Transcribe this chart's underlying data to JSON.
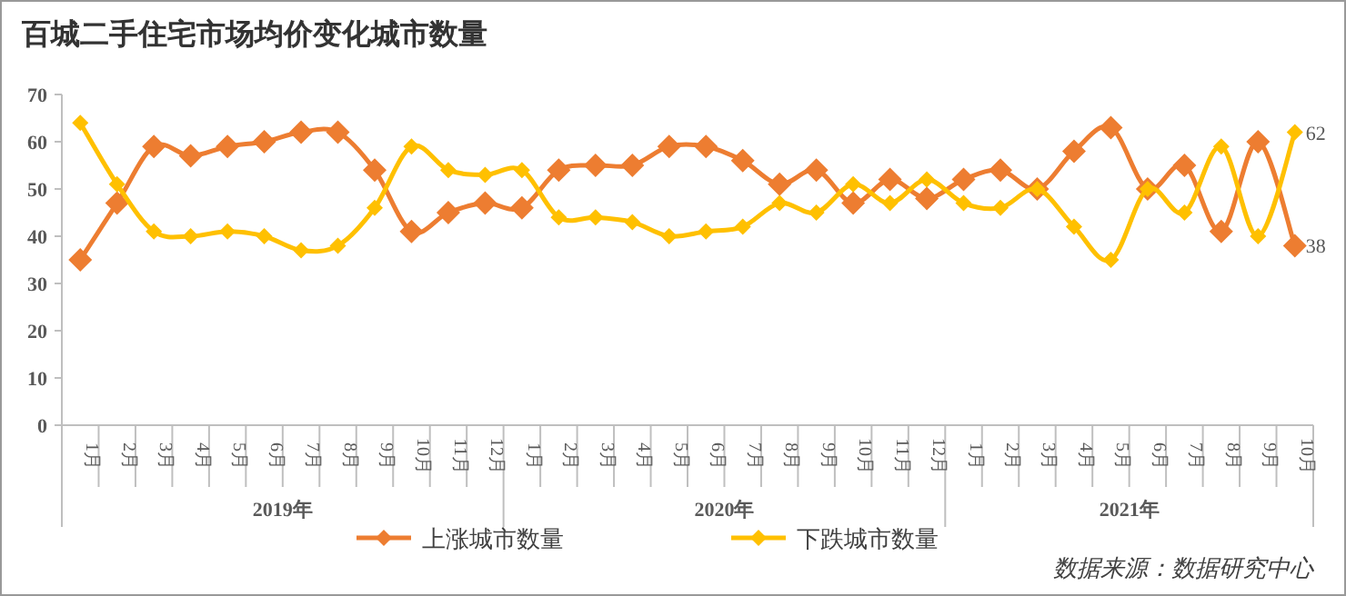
{
  "chart_data": {
    "type": "line",
    "title": "百城二手住宅市场均价变化城市数量",
    "categories": [
      "1月",
      "2月",
      "3月",
      "4月",
      "5月",
      "6月",
      "7月",
      "8月",
      "9月",
      "10月",
      "11月",
      "12月",
      "1月",
      "2月",
      "3月",
      "4月",
      "5月",
      "6月",
      "7月",
      "8月",
      "9月",
      "10月",
      "11月",
      "12月",
      "1月",
      "2月",
      "3月",
      "4月",
      "5月",
      "6月",
      "7月",
      "8月",
      "9月",
      "10月"
    ],
    "series": [
      {
        "name": "上涨城市数量",
        "color": "#ed7d31",
        "values": [
          35,
          47,
          59,
          57,
          59,
          60,
          62,
          62,
          54,
          41,
          45,
          47,
          46,
          54,
          55,
          55,
          59,
          59,
          56,
          51,
          54,
          47,
          52,
          48,
          52,
          54,
          50,
          58,
          63,
          50,
          55,
          41,
          60,
          38
        ],
        "value_labels": [
          null,
          null,
          null,
          null,
          null,
          null,
          null,
          null,
          null,
          null,
          null,
          null,
          null,
          null,
          null,
          null,
          null,
          null,
          null,
          null,
          null,
          null,
          null,
          null,
          null,
          null,
          null,
          null,
          null,
          null,
          null,
          null,
          null,
          "38"
        ]
      },
      {
        "name": "下跌城市数量",
        "color": "#ffc000",
        "values": [
          64,
          51,
          41,
          40,
          41,
          40,
          37,
          38,
          46,
          59,
          54,
          53,
          54,
          44,
          44,
          43,
          40,
          41,
          42,
          47,
          45,
          51,
          47,
          52,
          47,
          46,
          50,
          42,
          35,
          50,
          45,
          59,
          40,
          62
        ],
        "value_labels": [
          null,
          null,
          null,
          null,
          null,
          null,
          null,
          null,
          null,
          null,
          null,
          null,
          null,
          null,
          null,
          null,
          null,
          null,
          null,
          null,
          null,
          null,
          null,
          null,
          null,
          null,
          null,
          null,
          null,
          null,
          null,
          null,
          null,
          "62"
        ]
      }
    ],
    "ylim": [
      0,
      70
    ],
    "yticks": [
      0,
      10,
      20,
      30,
      40,
      50,
      60,
      70
    ],
    "grid": false,
    "legend": "bottom",
    "marker": "diamond",
    "line_style": "solid",
    "annotations": [
      "2019年",
      "2020年",
      "2021年",
      "数据来源：数据研究中心"
    ]
  }
}
